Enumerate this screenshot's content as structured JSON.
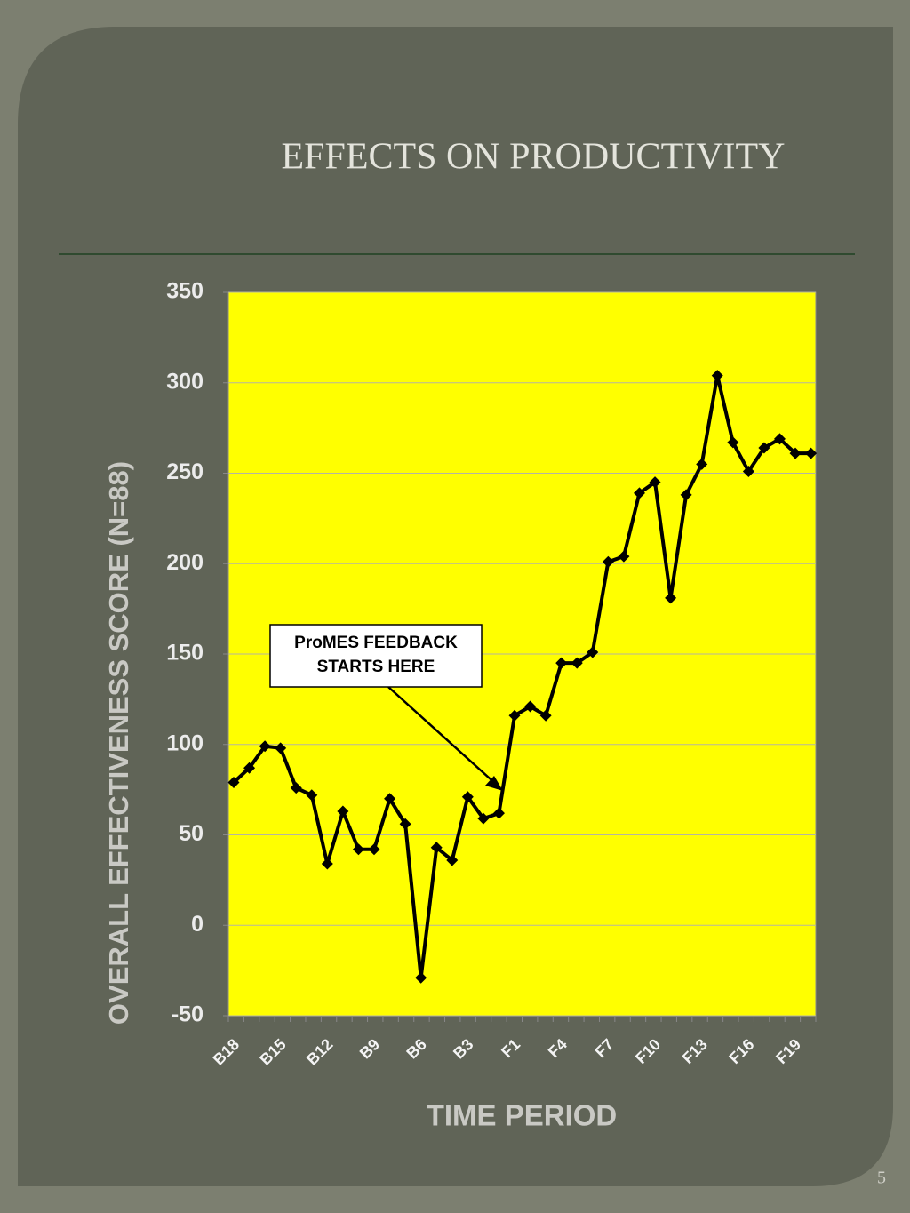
{
  "slide_number": "5",
  "chart_data": {
    "type": "line",
    "title": "EFFECTS ON PRODUCTIVITY",
    "y_label": "OVERALL EFFECTIVENESS SCORE (N=88)",
    "x_label": "TIME PERIOD",
    "annotation": [
      "ProMES FEEDBACK",
      "STARTS HERE"
    ],
    "categories": [
      "B18",
      null,
      null,
      "B15",
      null,
      null,
      "B12",
      null,
      null,
      "B9",
      null,
      null,
      "B6",
      null,
      null,
      "B3",
      null,
      null,
      "F1",
      null,
      null,
      "F4",
      null,
      null,
      "F7",
      null,
      null,
      "F10",
      null,
      null,
      "F13",
      null,
      null,
      "F16",
      null,
      null,
      "F19",
      null
    ],
    "series": [
      {
        "name": "Overall effectiveness score",
        "color": "#000000",
        "values": [
          79,
          87,
          99,
          98,
          76,
          72,
          34,
          63,
          42,
          42,
          70,
          56,
          -29,
          43,
          36,
          71,
          59,
          62,
          116,
          121,
          116,
          145,
          145,
          151,
          201,
          204,
          239,
          245,
          181,
          238,
          255,
          304,
          267,
          251,
          264,
          269,
          261,
          261
        ]
      }
    ],
    "ylim": [
      -50,
      350
    ],
    "yticks": [
      -50,
      0,
      50,
      100,
      150,
      200,
      250,
      300,
      350
    ],
    "grid": true,
    "plot_color": "#ffff00"
  }
}
